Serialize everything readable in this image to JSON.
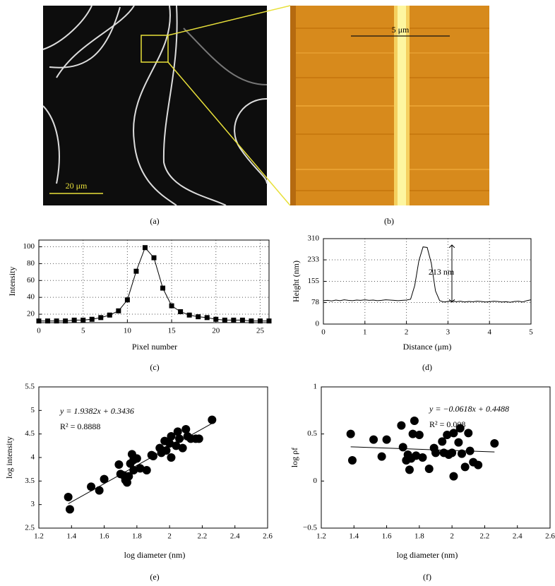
{
  "images": [
    {
      "panel_label": "(a)",
      "scale_bar": "20 μm"
    },
    {
      "panel_label": "(b)",
      "scale_bar": "5 μm"
    }
  ],
  "chart_data": [
    {
      "type": "line",
      "panel_label": "(c)",
      "xlabel": "Pixel number",
      "ylabel": "Intensity",
      "color": "#000000",
      "marker": "square",
      "grid": true,
      "x": [
        0,
        1,
        2,
        3,
        4,
        5,
        6,
        7,
        8,
        9,
        10,
        11,
        12,
        13,
        14,
        15,
        16,
        17,
        18,
        19,
        20,
        21,
        22,
        23,
        24,
        25,
        26
      ],
      "values": [
        12,
        12,
        12,
        12,
        13,
        13,
        14,
        16,
        19,
        24,
        37,
        71,
        99,
        87,
        51,
        30,
        23,
        19,
        17,
        16,
        14,
        13,
        13,
        13,
        12,
        12,
        12
      ],
      "xlim": [
        0,
        26
      ],
      "ylim": [
        10,
        108
      ],
      "xticks": [
        0,
        5,
        10,
        15,
        20,
        25
      ],
      "yticks": [
        20,
        40,
        60,
        80,
        100
      ]
    },
    {
      "type": "line",
      "panel_label": "(d)",
      "xlabel": "Distance (μm)",
      "ylabel": "Height (nm)",
      "color": "#000000",
      "grid": true,
      "annotation": "213 nm",
      "x": [
        0,
        0.1,
        0.2,
        0.3,
        0.4,
        0.5,
        0.6,
        0.7,
        0.8,
        0.9,
        1,
        1.1,
        1.2,
        1.3,
        1.4,
        1.5,
        1.6,
        1.7,
        1.8,
        1.9,
        2,
        2.1,
        2.2,
        2.3,
        2.4,
        2.5,
        2.6,
        2.7,
        2.8,
        2.9,
        3,
        3.1,
        3.2,
        3.3,
        3.4,
        3.5,
        3.6,
        3.7,
        3.8,
        3.9,
        4,
        4.1,
        4.2,
        4.3,
        4.4,
        4.5,
        4.6,
        4.7,
        4.8,
        4.9,
        5
      ],
      "values": [
        85,
        86,
        84,
        87,
        85,
        88,
        86,
        85,
        87,
        86,
        88,
        86,
        87,
        85,
        86,
        88,
        87,
        86,
        85,
        86,
        87,
        90,
        140,
        230,
        280,
        278,
        220,
        120,
        85,
        80,
        82,
        84,
        81,
        83,
        80,
        82,
        81,
        83,
        82,
        80,
        81,
        83,
        82,
        80,
        81,
        79,
        82,
        83,
        80,
        85,
        88
      ],
      "xlim": [
        0,
        5
      ],
      "ylim": [
        0,
        310
      ],
      "xticks": [
        0,
        1,
        2,
        3,
        4,
        5
      ],
      "yticks": [
        0,
        78,
        155,
        233,
        310
      ]
    },
    {
      "type": "scatter",
      "panel_label": "(e)",
      "xlabel": "log diameter (nm)",
      "ylabel": "log intensity",
      "color": "#000000",
      "equation": [
        "y = 1.9382x + 0.3436",
        "R² = 0.8888"
      ],
      "x": [
        1.38,
        1.39,
        1.52,
        1.57,
        1.6,
        1.69,
        1.7,
        1.72,
        1.73,
        1.74,
        1.75,
        1.76,
        1.77,
        1.78,
        1.78,
        1.8,
        1.82,
        1.86,
        1.89,
        1.9,
        1.94,
        1.95,
        1.97,
        1.98,
        2.0,
        2.01,
        2.01,
        2.04,
        2.05,
        2.06,
        2.08,
        2.1,
        2.11,
        2.13,
        2.16,
        2.18,
        2.26
      ],
      "values": [
        3.16,
        2.9,
        3.38,
        3.3,
        3.54,
        3.85,
        3.65,
        3.62,
        3.52,
        3.47,
        3.6,
        3.87,
        4.07,
        3.95,
        3.73,
        3.98,
        3.77,
        3.73,
        4.05,
        4.03,
        4.2,
        4.1,
        4.35,
        4.15,
        4.3,
        4.45,
        4.0,
        4.25,
        4.55,
        4.4,
        4.2,
        4.6,
        4.45,
        4.4,
        4.4,
        4.4,
        4.8
      ],
      "trendline": {
        "x": [
          1.38,
          2.26
        ],
        "y": [
          3.018,
          4.724
        ]
      },
      "xlim": [
        1.2,
        2.6
      ],
      "ylim": [
        2.5,
        5.5
      ],
      "xticks": [
        1.2,
        1.4,
        1.6,
        1.8,
        2,
        2.2,
        2.4,
        2.6
      ],
      "yticks": [
        2.5,
        3,
        3.5,
        4,
        4.5,
        5,
        5.5
      ]
    },
    {
      "type": "scatter",
      "panel_label": "(f)",
      "xlabel": "log diameter (nm)",
      "ylabel": "log ρf",
      "color": "#000000",
      "equation": [
        "y = −0.0618x + 0.4488",
        "R² = 0.008"
      ],
      "x": [
        1.38,
        1.39,
        1.52,
        1.57,
        1.6,
        1.69,
        1.7,
        1.72,
        1.73,
        1.74,
        1.75,
        1.76,
        1.77,
        1.78,
        1.8,
        1.82,
        1.86,
        1.89,
        1.9,
        1.94,
        1.95,
        1.97,
        1.98,
        2.0,
        2.01,
        2.01,
        2.04,
        2.05,
        2.06,
        2.08,
        2.1,
        2.11,
        2.13,
        2.16,
        2.26
      ],
      "values": [
        0.5,
        0.22,
        0.44,
        0.26,
        0.44,
        0.59,
        0.36,
        0.22,
        0.28,
        0.12,
        0.24,
        0.5,
        0.64,
        0.27,
        0.49,
        0.25,
        0.13,
        0.35,
        0.3,
        0.42,
        0.3,
        0.49,
        0.28,
        0.3,
        0.51,
        0.05,
        0.41,
        0.56,
        0.29,
        0.15,
        0.51,
        0.32,
        0.2,
        0.17,
        0.4
      ],
      "trendline": {
        "x": [
          1.38,
          2.26
        ],
        "y": [
          0.3635,
          0.3091
        ]
      },
      "xlim": [
        1.2,
        2.6
      ],
      "ylim": [
        -0.5,
        1
      ],
      "xticks": [
        1.2,
        1.4,
        1.6,
        1.8,
        2,
        2.2,
        2.4,
        2.6
      ],
      "yticks": [
        {
          "value": -0.5,
          "label": "−0.5"
        },
        0,
        0.5,
        1
      ]
    }
  ]
}
